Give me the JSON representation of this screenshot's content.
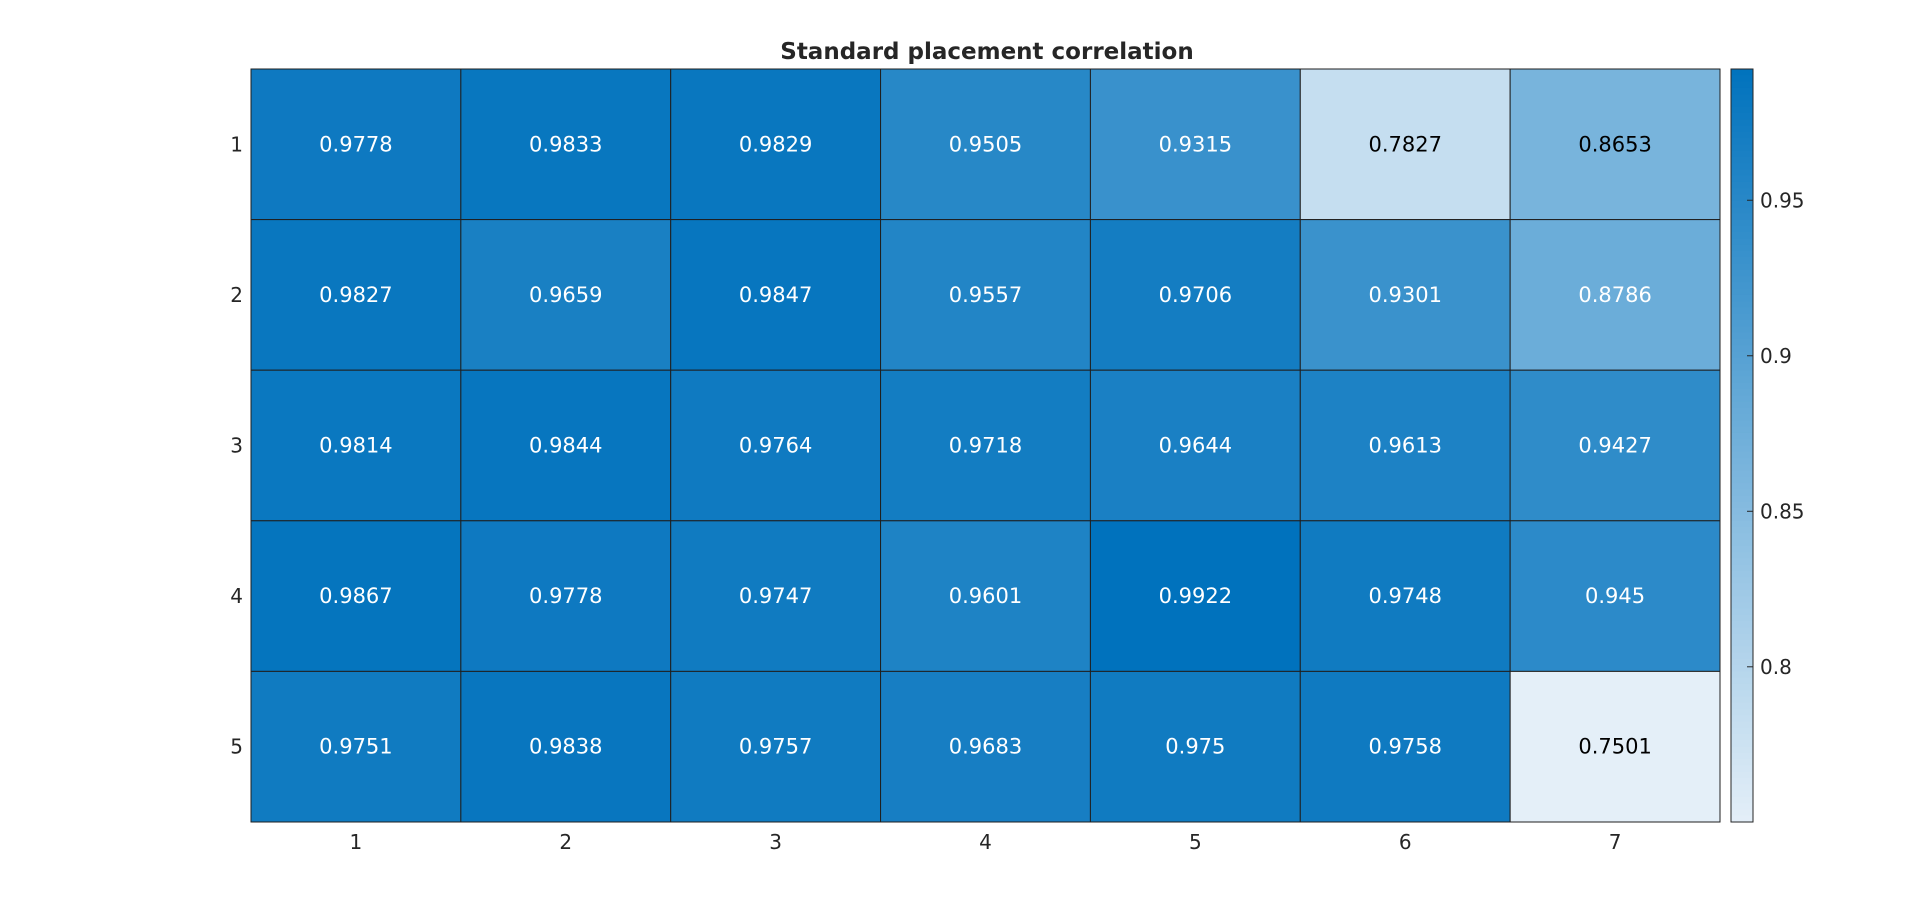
{
  "chart_data": {
    "type": "heatmap",
    "title": "Standard placement correlation",
    "xlabel": "",
    "ylabel": "",
    "x_categories": [
      "1",
      "2",
      "3",
      "4",
      "5",
      "6",
      "7"
    ],
    "y_categories": [
      "1",
      "2",
      "3",
      "4",
      "5"
    ],
    "values": [
      [
        0.9778,
        0.9833,
        0.9829,
        0.9505,
        0.9315,
        0.7827,
        0.8653
      ],
      [
        0.9827,
        0.9659,
        0.9847,
        0.9557,
        0.9706,
        0.9301,
        0.8786
      ],
      [
        0.9814,
        0.9844,
        0.9764,
        0.9718,
        0.9644,
        0.9613,
        0.9427
      ],
      [
        0.9867,
        0.9778,
        0.9747,
        0.9601,
        0.9922,
        0.9748,
        0.945
      ],
      [
        0.9751,
        0.9838,
        0.9757,
        0.9683,
        0.975,
        0.9758,
        0.7501
      ]
    ],
    "cell_labels": [
      [
        "0.9778",
        "0.9833",
        "0.9829",
        "0.9505",
        "0.9315",
        "0.7827",
        "0.8653"
      ],
      [
        "0.9827",
        "0.9659",
        "0.9847",
        "0.9557",
        "0.9706",
        "0.9301",
        "0.8786"
      ],
      [
        "0.9814",
        "0.9844",
        "0.9764",
        "0.9718",
        "0.9644",
        "0.9613",
        "0.9427"
      ],
      [
        "0.9867",
        "0.9778",
        "0.9747",
        "0.9601",
        "0.9922",
        "0.9748",
        "0.945"
      ],
      [
        "0.9751",
        "0.9838",
        "0.9757",
        "0.9683",
        "0.975",
        "0.9758",
        "0.7501"
      ]
    ],
    "colorbar": {
      "range": [
        0.7501,
        0.9922
      ],
      "ticks": [
        0.8,
        0.85,
        0.9,
        0.95
      ],
      "tick_labels": [
        "0.8",
        "0.85",
        "0.9",
        "0.95"
      ],
      "color_low": "#e4eff8",
      "color_high": "#0072bd"
    },
    "grid": true,
    "legend": "colorbar-right"
  }
}
